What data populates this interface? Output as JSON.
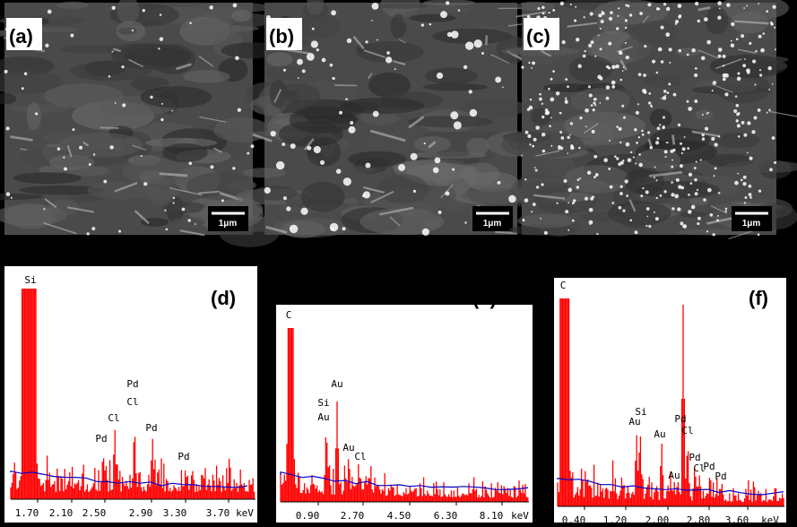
{
  "panels": [
    {
      "label": "(a)",
      "scale_bar": "1μm"
    },
    {
      "label": "(b)",
      "scale_bar": "1μm"
    },
    {
      "label": "(c)",
      "scale_bar": "1μm"
    }
  ],
  "spectra": [
    {
      "label": "(d)",
      "unit": "keV",
      "ticks": [
        "1.70",
        "2.10",
        "2.50",
        "2.90",
        "3.30",
        "3.70"
      ],
      "peaks": [
        "Si",
        "Pd",
        "Cl",
        "Cl",
        "Pd",
        "Pd",
        "Pd"
      ]
    },
    {
      "label": "(e)",
      "unit": "keV",
      "ticks": [
        "0.90",
        "2.70",
        "4.50",
        "6.30",
        "8.10"
      ],
      "peaks": [
        "C",
        "Au",
        "Si",
        "Au",
        "Au",
        "Cl"
      ]
    },
    {
      "label": "(f)",
      "unit": "keV",
      "ticks": [
        "0.40",
        "1.20",
        "2.00",
        "2.80",
        "3.60"
      ],
      "peaks": [
        "C",
        "Si",
        "Au",
        "Pd",
        "Cl",
        "Au",
        "Pd",
        "Cl",
        "Pd",
        "Au",
        "Pd"
      ]
    }
  ]
}
